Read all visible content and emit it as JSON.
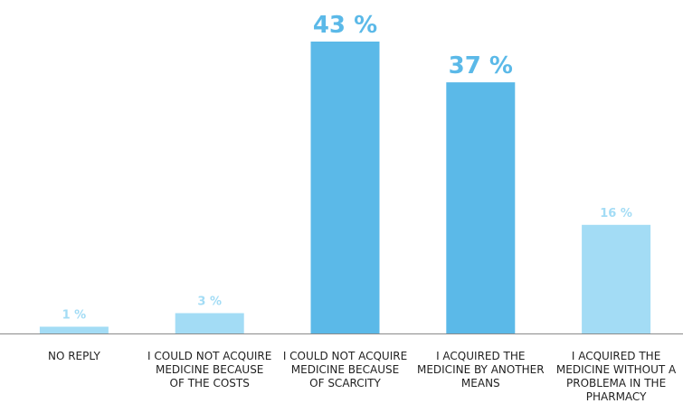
{
  "chart_data": {
    "type": "bar",
    "title": "",
    "xlabel": "",
    "ylabel": "",
    "ylim": [
      0,
      43
    ],
    "grid": false,
    "legend": "none",
    "categories": [
      [
        "NO REPLY"
      ],
      [
        "I COULD NOT ACQUIRE",
        "MEDICINE BECAUSE",
        "OF THE COSTS"
      ],
      [
        "I COULD NOT ACQUIRE",
        "MEDICINE BECAUSE",
        "OF SCARCITY"
      ],
      [
        "I ACQUIRED THE",
        "MEDICINE BY ANOTHER",
        "MEANS"
      ],
      [
        "I ACQUIRED THE",
        "MEDICINE WITHOUT A",
        "PROBLEMA IN THE",
        "PHARMACY"
      ]
    ],
    "values": [
      1,
      3,
      43,
      37,
      16
    ],
    "value_labels": [
      "1 %",
      "3 %",
      "43 %",
      "37 %",
      "16 %"
    ],
    "highlighted": [
      false,
      false,
      true,
      true,
      false
    ],
    "colors": {
      "light": "#a3dcf5",
      "strong": "#5bb9e8",
      "axis": "#8a8a8a",
      "text": "#222222"
    }
  }
}
